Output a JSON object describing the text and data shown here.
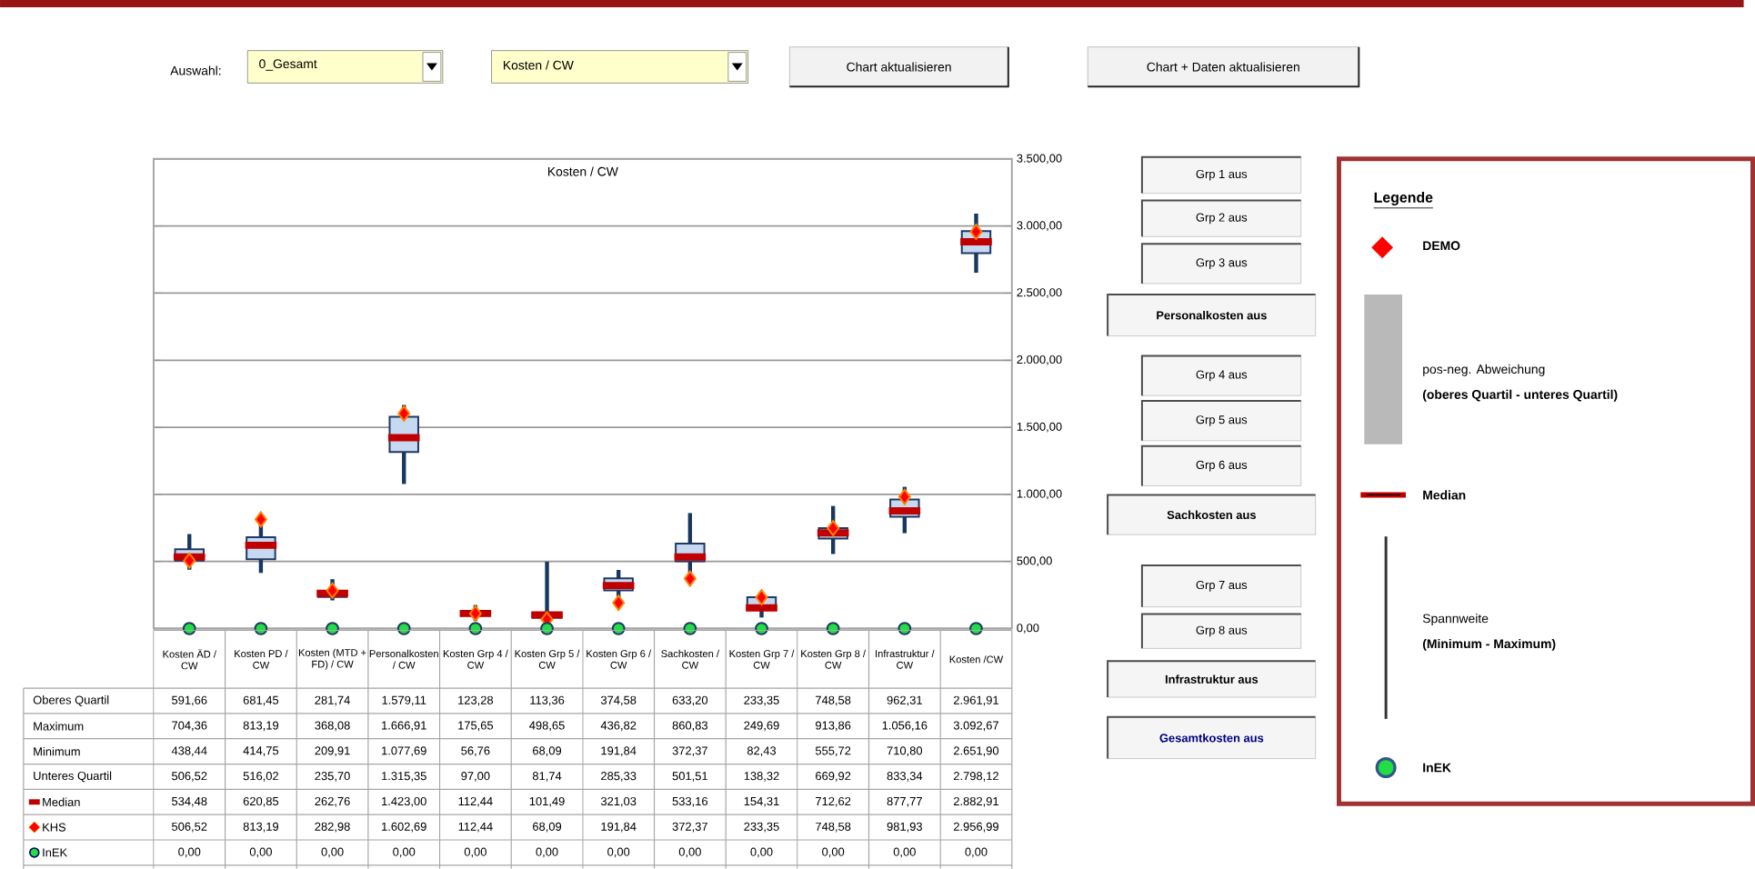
{
  "chart_data": {
    "type": "box",
    "title": "Kosten / CW",
    "categories": [
      "Kosten ÄD / CW",
      "Kosten PD / CW",
      "Kosten (MTD + FD) / CW",
      "Personalkosten / CW",
      "Kosten Grp 4 / CW",
      "Kosten Grp 5 / CW",
      "Kosten Grp 6 / CW",
      "Sachkosten / CW",
      "Kosten Grp 7 / CW",
      "Kosten Grp 8 / CW",
      "Infrastruktur / CW",
      "Kosten /CW"
    ],
    "series": [
      {
        "color": "#c6d9f1",
        "boxes": [
          {
            "low": 438.44,
            "q1": 506.52,
            "median": 534.48,
            "q3": 591.66,
            "high": 704.36
          },
          {
            "low": 414.75,
            "q1": 516.02,
            "median": 620.85,
            "q3": 681.45,
            "high": 813.19
          },
          {
            "low": 209.91,
            "q1": 235.7,
            "median": 262.76,
            "q3": 281.74,
            "high": 368.08
          },
          {
            "low": 1077.69,
            "q1": 1315.35,
            "median": 1423.0,
            "q3": 1579.11,
            "high": 1666.91
          },
          {
            "low": 56.76,
            "q1": 97.0,
            "median": 112.44,
            "q3": 123.28,
            "high": 175.65
          },
          {
            "low": 68.09,
            "q1": 81.74,
            "median": 101.49,
            "q3": 113.36,
            "high": 498.65
          },
          {
            "low": 191.84,
            "q1": 285.33,
            "median": 321.03,
            "q3": 374.58,
            "high": 436.82
          },
          {
            "low": 372.37,
            "q1": 501.51,
            "median": 533.16,
            "q3": 633.2,
            "high": 860.83
          },
          {
            "low": 82.43,
            "q1": 138.32,
            "median": 154.31,
            "q3": 233.35,
            "high": 249.69
          },
          {
            "low": 555.72,
            "q1": 669.92,
            "median": 712.62,
            "q3": 748.58,
            "high": 913.86
          },
          {
            "low": 710.8,
            "q1": 833.34,
            "median": 877.77,
            "q3": 962.31,
            "high": 1056.16
          },
          {
            "low": 2651.9,
            "q1": 2798.12,
            "median": 2882.91,
            "q3": 2961.91,
            "high": 3092.67
          }
        ]
      },
      {
        "type": "scatter",
        "name": "KHS",
        "color": "#ff0000",
        "marker": "diamond",
        "x": [
          "Kosten ÄD / CW",
          "Kosten PD / CW",
          "Kosten (MTD + FD) / CW",
          "Personalkosten / CW",
          "Kosten Grp 4 / CW",
          "Kosten Grp 5 / CW",
          "Kosten Grp 6 / CW",
          "Sachkosten / CW",
          "Kosten Grp 7 / CW",
          "Kosten Grp 8 / CW",
          "Infrastruktur / CW",
          "Kosten /CW"
        ],
        "values": [
          506.52,
          813.19,
          282.98,
          1602.69,
          112.44,
          68.09,
          191.84,
          372.37,
          233.35,
          748.58,
          981.93,
          2956.99
        ],
        "value_labels": [
          "506,52",
          "813,19",
          "282,98",
          "1.602,69",
          "112,44",
          "68,09",
          "191,84",
          "372,37",
          "233,35",
          "748,58",
          "981,93",
          "2.956,99"
        ]
      },
      {
        "type": "scatter",
        "name": "InEK",
        "color": "#22dd44",
        "marker": "circle",
        "x": [
          "Kosten ÄD / CW",
          "Kosten PD / CW",
          "Kosten (MTD + FD) / CW",
          "Personalkosten / CW",
          "Kosten Grp 4 / CW",
          "Kosten Grp 5 / CW",
          "Kosten Grp 6 / CW",
          "Sachkosten / CW",
          "Kosten Grp 7 / CW",
          "Kosten Grp 8 / CW",
          "Infrastruktur / CW",
          "Kosten /CW"
        ],
        "values": [
          0,
          0,
          0,
          0,
          0,
          0,
          0,
          0,
          0,
          0,
          0,
          0
        ],
        "value_labels": [
          "0,00",
          "0,00",
          "0,00",
          "0,00",
          "0,00",
          "0,00",
          "0,00",
          "0,00",
          "0,00",
          "0,00",
          "0,00",
          "0,00"
        ]
      }
    ],
    "ylim": [
      0,
      3500
    ],
    "yticks": [
      {
        "value": 0,
        "label": "0,00"
      },
      {
        "value": 500,
        "label": "500,00"
      },
      {
        "value": 1000,
        "label": "1.000,00"
      },
      {
        "value": 1500,
        "label": "1.500,00"
      },
      {
        "value": 2000,
        "label": "2.000,00"
      },
      {
        "value": 2500,
        "label": "2.500,00"
      },
      {
        "value": 3000,
        "label": "3.000,00"
      },
      {
        "value": 3500,
        "label": "3.500,00"
      }
    ],
    "grid": "y",
    "legend": "bottom left",
    "legend_title": "Legende",
    "annotations": [
      "Auswahl:",
      "0_Gesamt",
      "Kosten / CW",
      "Chart aktualisieren",
      "Chart + Daten aktualisieren",
      "Grp 1 aus",
      "Grp 2 aus",
      "Grp 3 aus",
      "Personalkosten aus",
      "Grp 4 aus",
      "Grp 5 aus",
      "Grp 6 aus",
      "Sachkosten aus",
      "Grp 7 aus",
      "Grp 8 aus",
      "Infrastruktur aus",
      "Gesamtkosten aus",
      "DEMO",
      "pos-neg. Abweichung",
      "(oberes Quartil - unteres Quartil)",
      "Median",
      "Spannweite",
      "(Minimum - Maximum)",
      "Oberes Quartil",
      "Maximum",
      "Minimum",
      "Unteres Quartil",
      "Median",
      "591,66",
      "681,45",
      "281,74",
      "1.579,11",
      "123,28",
      "113,36",
      "374,58",
      "633,20",
      "233,35",
      "748,58",
      "962,31",
      "2.961,91",
      "704,36",
      "813,19",
      "368,08",
      "1.666,91",
      "175,65",
      "498,65",
      "436,82",
      "860,83",
      "249,69",
      "913,86",
      "1.056,16",
      "3.092,67",
      "438,44",
      "414,75",
      "209,91",
      "1.077,69",
      "56,76",
      "68,09",
      "191,84",
      "372,37",
      "82,43",
      "555,72",
      "710,80",
      "2.651,90",
      "506,52",
      "516,02",
      "235,70",
      "1.315,35",
      "97,00",
      "81,74",
      "285,33",
      "501,51",
      "138,32",
      "669,92",
      "833,34",
      "2.798,12",
      "534,48",
      "620,85",
      "262,76",
      "1.423,00",
      "112,44",
      "101,49",
      "321,03",
      "533,16",
      "154,31",
      "712,62",
      "877,77",
      "2.882,91"
    ]
  }
}
